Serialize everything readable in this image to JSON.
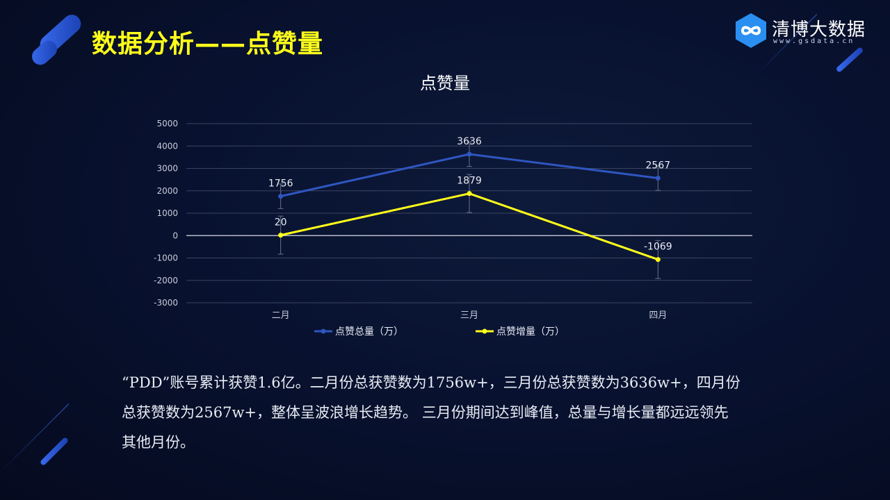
{
  "slide": {
    "title": "数据分析——点赞量",
    "logo_name": "清博大数据",
    "logo_url": "www.gsdata.cn",
    "body_lines": [
      "“PDD”账号累计获赞1.6亿。二月份总获赞数为1756w+，三月份总获赞数为3636w+，四月份",
      "总获赞数为2567w+，整体呈波浪增长趋势。 三月份期间达到峰值，总量与增长量都远远领先",
      "其他月份。"
    ]
  },
  "colors": {
    "title": "#ffff1a",
    "series_total": "#2f56c0",
    "series_increase": "#ffff1a",
    "accent": "#3a6cf0"
  },
  "icons": {
    "logo": "infinity-hexagon-icon"
  },
  "chart_data": {
    "type": "line",
    "title": "点赞量",
    "categories": [
      "二月",
      "三月",
      "四月"
    ],
    "series": [
      {
        "name": "点赞总量（万）",
        "values": [
          1756,
          3636,
          2567
        ],
        "labels": [
          "1756",
          "3636",
          "2567"
        ],
        "error": [
          550,
          550,
          550
        ]
      },
      {
        "name": "点赞增量（万）",
        "values": [
          20,
          1879,
          -1069
        ],
        "labels": [
          "20",
          "1879",
          "-1069"
        ],
        "error": [
          850,
          850,
          850
        ]
      }
    ],
    "ylim": [
      -3000,
      5000
    ],
    "yticks": [
      5000,
      4000,
      3000,
      2000,
      1000,
      0,
      -1000,
      -2000,
      -3000
    ],
    "grid": true,
    "legend": "bottom"
  }
}
